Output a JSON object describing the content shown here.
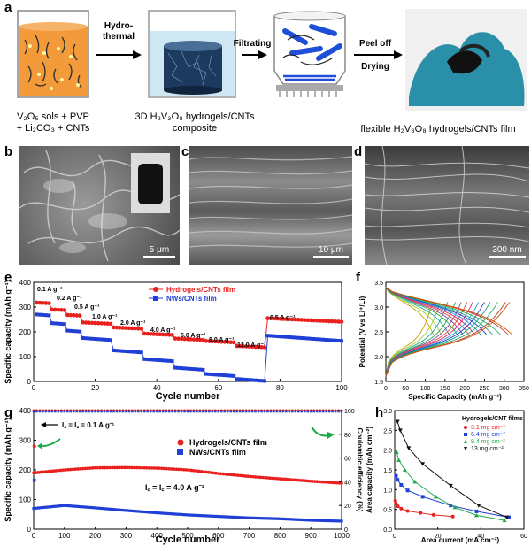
{
  "panel_a": {
    "label": "a",
    "step_labels": {
      "hydrothermal_line1": "Hydro-",
      "hydrothermal_line2": "thermal",
      "filtrating": "Filtrating",
      "peel_off": "Peel off",
      "drying": "Drying"
    },
    "captions": {
      "precursor_line1": "V₂O₅ sols + PVP",
      "precursor_line2": "+ Li₂CO₃ + CNTs",
      "composite_line1": "3D H₂V₃O₈ hydrogels/CNTs",
      "composite_line2": "composite",
      "film": "flexible H₂V₃O₈ hydrogels/CNTs film"
    },
    "colors": {
      "sol": "#f39a3a",
      "gel": "#1c3a5e",
      "nanowire": "#1f4fd6",
      "glove": "#2a8fa8"
    }
  },
  "panel_b": {
    "label": "b",
    "scale": "5 μm"
  },
  "panel_c": {
    "label": "c",
    "scale": "10 μm"
  },
  "panel_d": {
    "label": "d",
    "scale": "300 nm"
  },
  "panel_e": {
    "label": "e",
    "legend": [
      "Hydrogels/CNTs film",
      "NWs/CNTs film"
    ],
    "rate_labels": [
      "0.1 A g⁻¹",
      "0.2 A g⁻¹",
      "0.5 A g⁻¹",
      "1.0 A g⁻¹",
      "2.0 A g⁻¹",
      "4.0 A g⁻¹",
      "6.0 A g⁻¹",
      "8.0 A g⁻¹",
      "12.0 A g⁻¹",
      "0.5 A g⁻¹"
    ],
    "xlabel": "Cycle number",
    "ylabel": "Specific capacity (mAh g⁻¹)",
    "xticks": [
      "0",
      "20",
      "40",
      "60",
      "80",
      "100"
    ],
    "yticks": [
      "0",
      "100",
      "200",
      "300",
      "400"
    ]
  },
  "panel_f": {
    "label": "f",
    "xlabel": "Specific Capacity (mAh g⁻¹)",
    "ylabel": "Potential (V vs Li⁺/Li)",
    "xticks": [
      "0",
      "50",
      "100",
      "150",
      "200",
      "250",
      "300",
      "350"
    ],
    "yticks": [
      "1.5",
      "2.0",
      "2.5",
      "3.0",
      "3.5"
    ]
  },
  "panel_g": {
    "label": "g",
    "legend": [
      "Hydrogels/CNTs film",
      "NWs/CNTs film"
    ],
    "annotation_low": "I꜀ = I꜀ = 0.1 A g⁻¹",
    "annotation_high": "I꜀ = I꜀ = 4.0 A g⁻¹",
    "xlabel": "Cycle number",
    "ylabel": "Specific capacity (mAh g⁻¹)",
    "y2label": "Coulombic efficiency (%)",
    "xticks": [
      "0",
      "100",
      "200",
      "300",
      "400",
      "500",
      "600",
      "700",
      "800",
      "900",
      "1000"
    ],
    "yticks": [
      "0",
      "100",
      "200",
      "300",
      "400"
    ],
    "y2ticks": [
      "0",
      "20",
      "40",
      "60",
      "80",
      "100"
    ]
  },
  "panel_h": {
    "label": "h",
    "legend_title": "Hydrogels/CNT films",
    "legend": [
      "3.1 mg cm⁻²",
      "6.4 mg cm⁻²",
      "9.4 mg cm⁻²",
      "13 mg cm⁻²"
    ],
    "xlabel": "Area current (mA cm⁻²)",
    "ylabel": "Area capacity (mAh cm⁻²)",
    "xticks": [
      "0",
      "20",
      "40",
      "60"
    ],
    "yticks": [
      "0.0",
      "0.5",
      "1.0",
      "1.5",
      "2.0",
      "2.5",
      "3.0"
    ]
  },
  "chart_data": [
    {
      "panel": "e",
      "type": "scatter",
      "xlabel": "Cycle number",
      "ylabel": "Specific capacity (mAh g⁻¹)",
      "xlim": [
        0,
        100
      ],
      "ylim": [
        0,
        400
      ],
      "series": [
        {
          "name": "Hydrogels/CNTs film",
          "color": "#e8201e",
          "segments": [
            [
              1,
              5,
              318
            ],
            [
              6,
              10,
              290
            ],
            [
              11,
              15,
              268
            ],
            [
              16,
              25,
              238
            ],
            [
              26,
              35,
              218
            ],
            [
              36,
              45,
              193
            ],
            [
              46,
              55,
              173
            ],
            [
              56,
              65,
              163
            ],
            [
              66,
              75,
              143
            ],
            [
              76,
              100,
              255
            ]
          ]
        },
        {
          "name": "NWs/CNTs film",
          "color": "#1f3fd6",
          "segments": [
            [
              1,
              5,
              270
            ],
            [
              6,
              10,
              235
            ],
            [
              11,
              15,
              205
            ],
            [
              16,
              25,
              175
            ],
            [
              26,
              35,
              125
            ],
            [
              36,
              45,
              90
            ],
            [
              46,
              55,
              55
            ],
            [
              56,
              65,
              30
            ],
            [
              66,
              75,
              10
            ],
            [
              76,
              100,
              185
            ]
          ]
        }
      ]
    },
    {
      "panel": "f",
      "type": "line",
      "xlabel": "Specific Capacity (mAh g⁻¹)",
      "ylabel": "Potential (V vs Li⁺/Li)",
      "xlim": [
        0,
        350
      ],
      "ylim": [
        1.5,
        3.5
      ],
      "discharge_capacities": [
        120,
        140,
        160,
        180,
        195,
        210,
        225,
        240,
        255,
        270,
        290,
        310,
        320
      ]
    },
    {
      "panel": "g",
      "type": "scatter",
      "xlabel": "Cycle number",
      "ylabel": "Specific capacity (mAh g⁻¹)",
      "xlim": [
        0,
        1000
      ],
      "ylim": [
        0,
        400
      ],
      "series": [
        {
          "name": "Hydrogels/CNTs film",
          "color": "#e8201e",
          "x": [
            0,
            100,
            200,
            300,
            400,
            500,
            600,
            700,
            800,
            900,
            1000
          ],
          "y": [
            190,
            200,
            207,
            208,
            206,
            200,
            188,
            178,
            170,
            162,
            155
          ]
        },
        {
          "name": "NWs/CNTs film",
          "color": "#1f3fd6",
          "x": [
            0,
            100,
            200,
            300,
            400,
            500,
            600,
            700,
            800,
            900,
            1000
          ],
          "y": [
            70,
            80,
            72,
            63,
            55,
            48,
            43,
            38,
            35,
            30,
            27
          ]
        }
      ],
      "efficiency": {
        "ylim": [
          0,
          100
        ],
        "value": 100
      }
    },
    {
      "panel": "h",
      "type": "line",
      "xlabel": "Area current (mA cm⁻²)",
      "ylabel": "Area capacity (mAh cm⁻²)",
      "xlim": [
        0,
        60
      ],
      "ylim": [
        0,
        3.0
      ],
      "series": [
        {
          "name": "3.1 mg cm⁻²",
          "color": "#e8201e",
          "x": [
            0.3,
            0.6,
            1.5,
            3,
            6,
            12,
            18,
            27
          ],
          "y": [
            0.72,
            0.65,
            0.58,
            0.52,
            0.46,
            0.41,
            0.36,
            0.32
          ]
        },
        {
          "name": "6.4 mg cm⁻²",
          "color": "#1f3fd6",
          "x": [
            0.6,
            1.3,
            3,
            6,
            13,
            26,
            38,
            53
          ],
          "y": [
            1.35,
            1.25,
            1.12,
            0.98,
            0.82,
            0.6,
            0.45,
            0.3
          ]
        },
        {
          "name": "9.4 mg cm⁻²",
          "color": "#1fa84a",
          "x": [
            0.9,
            1.9,
            4.7,
            9.4,
            19,
            28,
            38,
            51
          ],
          "y": [
            1.95,
            1.75,
            1.5,
            1.2,
            0.82,
            0.55,
            0.35,
            0.22
          ]
        },
        {
          "name": "13 mg cm⁻²",
          "color": "#111111",
          "x": [
            1.3,
            2.6,
            6.5,
            13,
            26,
            39,
            52
          ],
          "y": [
            2.72,
            2.5,
            2.05,
            1.65,
            1.1,
            0.6,
            0.3
          ]
        }
      ]
    }
  ]
}
